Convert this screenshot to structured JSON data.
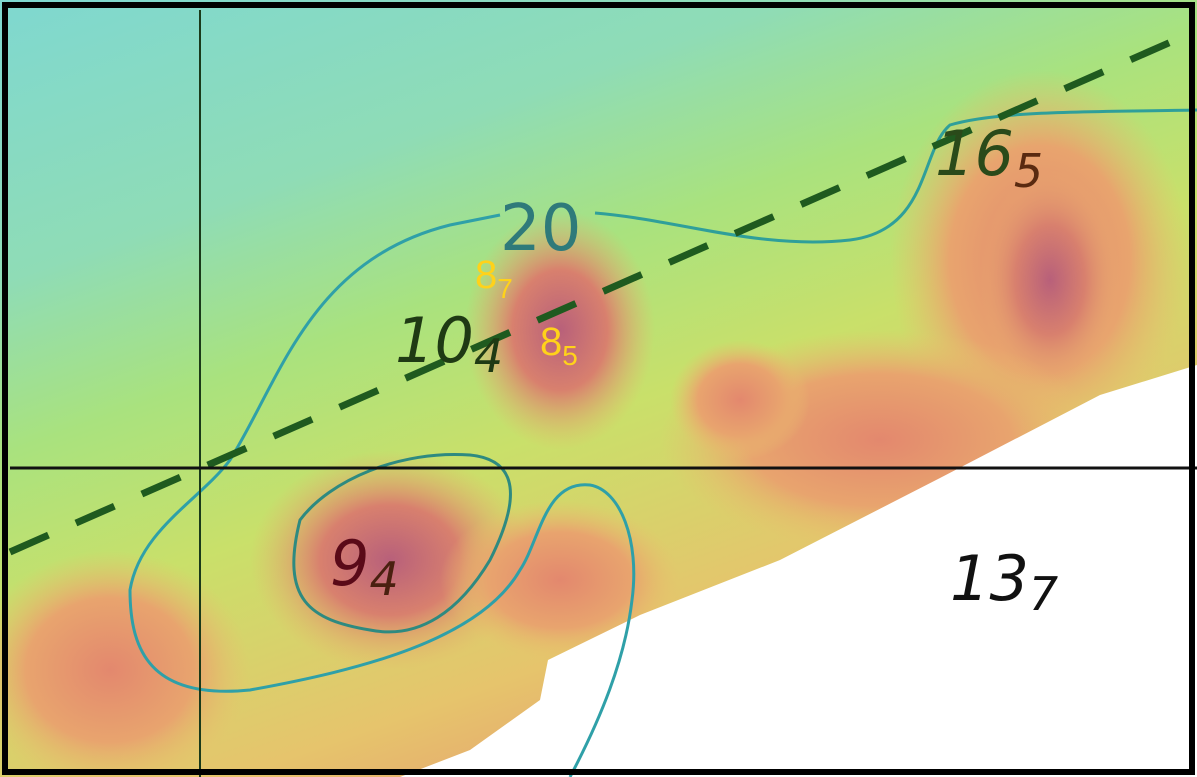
{
  "map": {
    "contour_label": "20",
    "soundings": [
      {
        "depth": "16",
        "sub": "5"
      },
      {
        "depth": "10",
        "sub": "4"
      },
      {
        "depth": "9",
        "sub": "4"
      },
      {
        "depth": "13",
        "sub": "7"
      }
    ],
    "highlighted_soundings": [
      {
        "depth": "8",
        "sub": "7"
      },
      {
        "depth": "8",
        "sub": "5"
      }
    ]
  }
}
